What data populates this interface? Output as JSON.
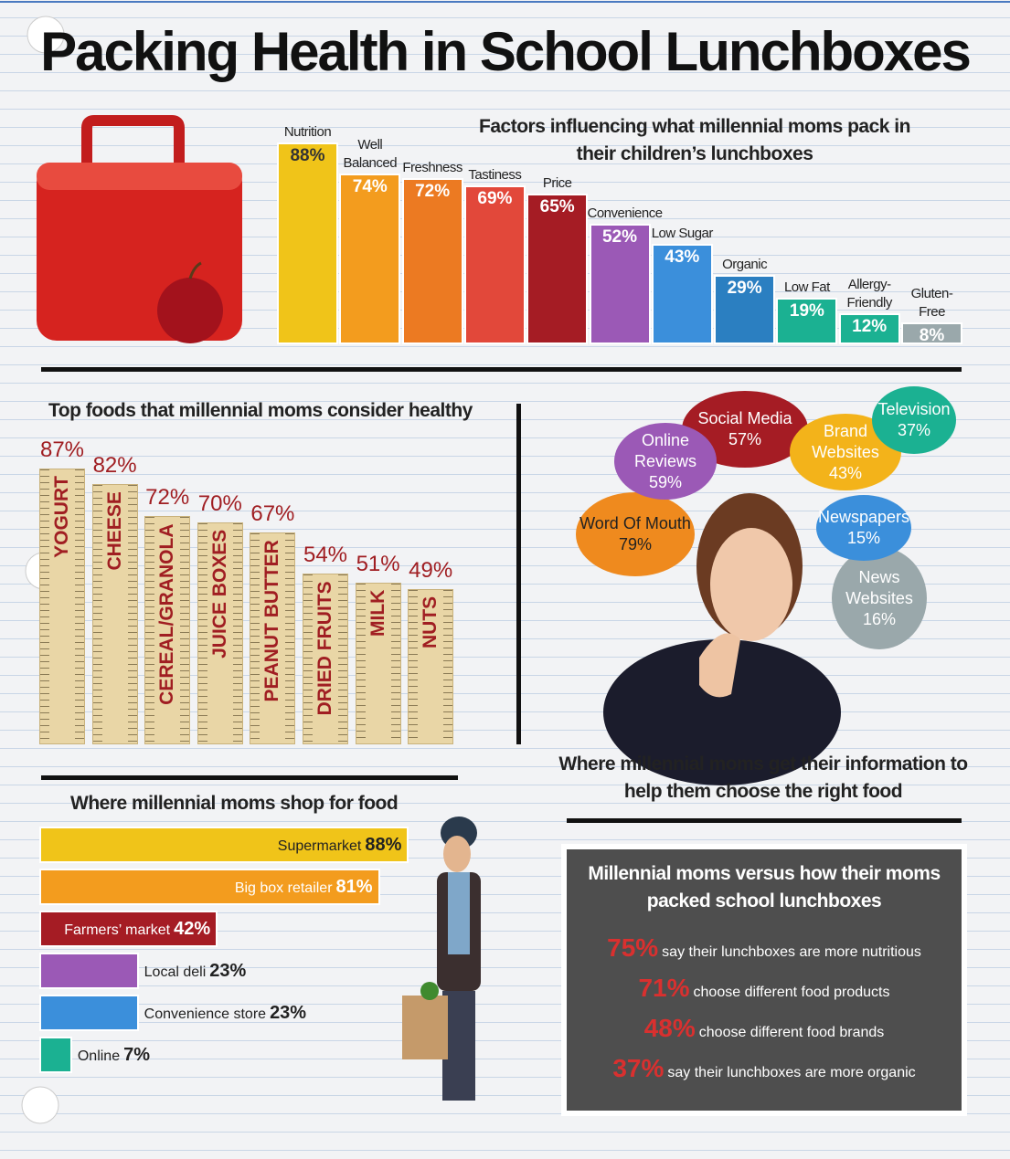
{
  "title": "Packing Health in School Lunchboxes",
  "chart_data": [
    {
      "type": "bar",
      "title": "Factors influencing what millennial moms pack in their children’s lunchboxes",
      "categories": [
        "Nutrition",
        "Well Balanced",
        "Freshness",
        "Tastiness",
        "Price",
        "Convenience",
        "Low Sugar",
        "Organic",
        "Low Fat",
        "Allergy-Friendly",
        "Gluten-Free"
      ],
      "values": [
        88,
        74,
        72,
        69,
        65,
        52,
        43,
        29,
        19,
        12,
        8
      ],
      "value_labels": [
        "88%",
        "74%",
        "72%",
        "69%",
        "65%",
        "52%",
        "43%",
        "29%",
        "19%",
        "12%",
        "8%"
      ],
      "colors": [
        "#f0c419",
        "#f39c1e",
        "#ec7a22",
        "#e2483a",
        "#a51c24",
        "#9b59b6",
        "#3b8fdb",
        "#2b7fc1",
        "#1bb192",
        "#1bb192",
        "#9aa8ab"
      ]
    },
    {
      "type": "ruler",
      "title": "Top foods that millennial moms consider healthy",
      "categories": [
        "YOGURT",
        "CHEESE",
        "CEREAL/GRANOLA",
        "JUICE BOXES",
        "PEANUT BUTTER",
        "DRIED FRUITS",
        "MILK",
        "NUTS"
      ],
      "values": [
        87,
        82,
        72,
        70,
        67,
        54,
        51,
        49
      ],
      "value_labels": [
        "87%",
        "82%",
        "72%",
        "70%",
        "67%",
        "54%",
        "51%",
        "49%"
      ],
      "color": "#e9d6a6"
    },
    {
      "type": "callout",
      "title": "Where millennial moms get their information to help them choose the right food",
      "categories": [
        "News Websites",
        "Word Of Mouth",
        "Social Media",
        "Online Reviews",
        "Brand Websites",
        "Television",
        "Newspapers"
      ],
      "values": [
        16,
        79,
        57,
        59,
        43,
        37,
        15
      ],
      "value_labels": [
        "16%",
        "79%",
        "57%",
        "59%",
        "43%",
        "37%",
        "15%"
      ],
      "colors": [
        "#9aa8ab",
        "#ef8a1e",
        "#a51c24",
        "#9b59b6",
        "#f3b31a",
        "#1bb192",
        "#3b8fdb"
      ]
    },
    {
      "type": "hbar",
      "title": "Where millennial moms shop for food",
      "categories": [
        "Supermarket",
        "Big box retailer",
        "Farmers’ market",
        "Local deli",
        "Convenience store",
        "Online"
      ],
      "values": [
        88,
        81,
        42,
        23,
        23,
        7
      ],
      "value_labels": [
        "88%",
        "81%",
        "42%",
        "23%",
        "23%",
        "7%"
      ],
      "colors": [
        "#f0c419",
        "#f39c1e",
        "#a51c24",
        "#9b59b6",
        "#3b8fdb",
        "#1bb192"
      ]
    },
    {
      "type": "stat",
      "title": "Millennial moms versus how their moms packed school lunchboxes",
      "categories": [
        "say their lunchboxes are more nutritious",
        "choose different food products",
        "choose different food brands",
        "say their lunchboxes are more organic"
      ],
      "values": [
        75,
        71,
        48,
        37
      ],
      "value_labels": [
        "75%",
        "71%",
        "48%",
        "37%"
      ]
    }
  ]
}
